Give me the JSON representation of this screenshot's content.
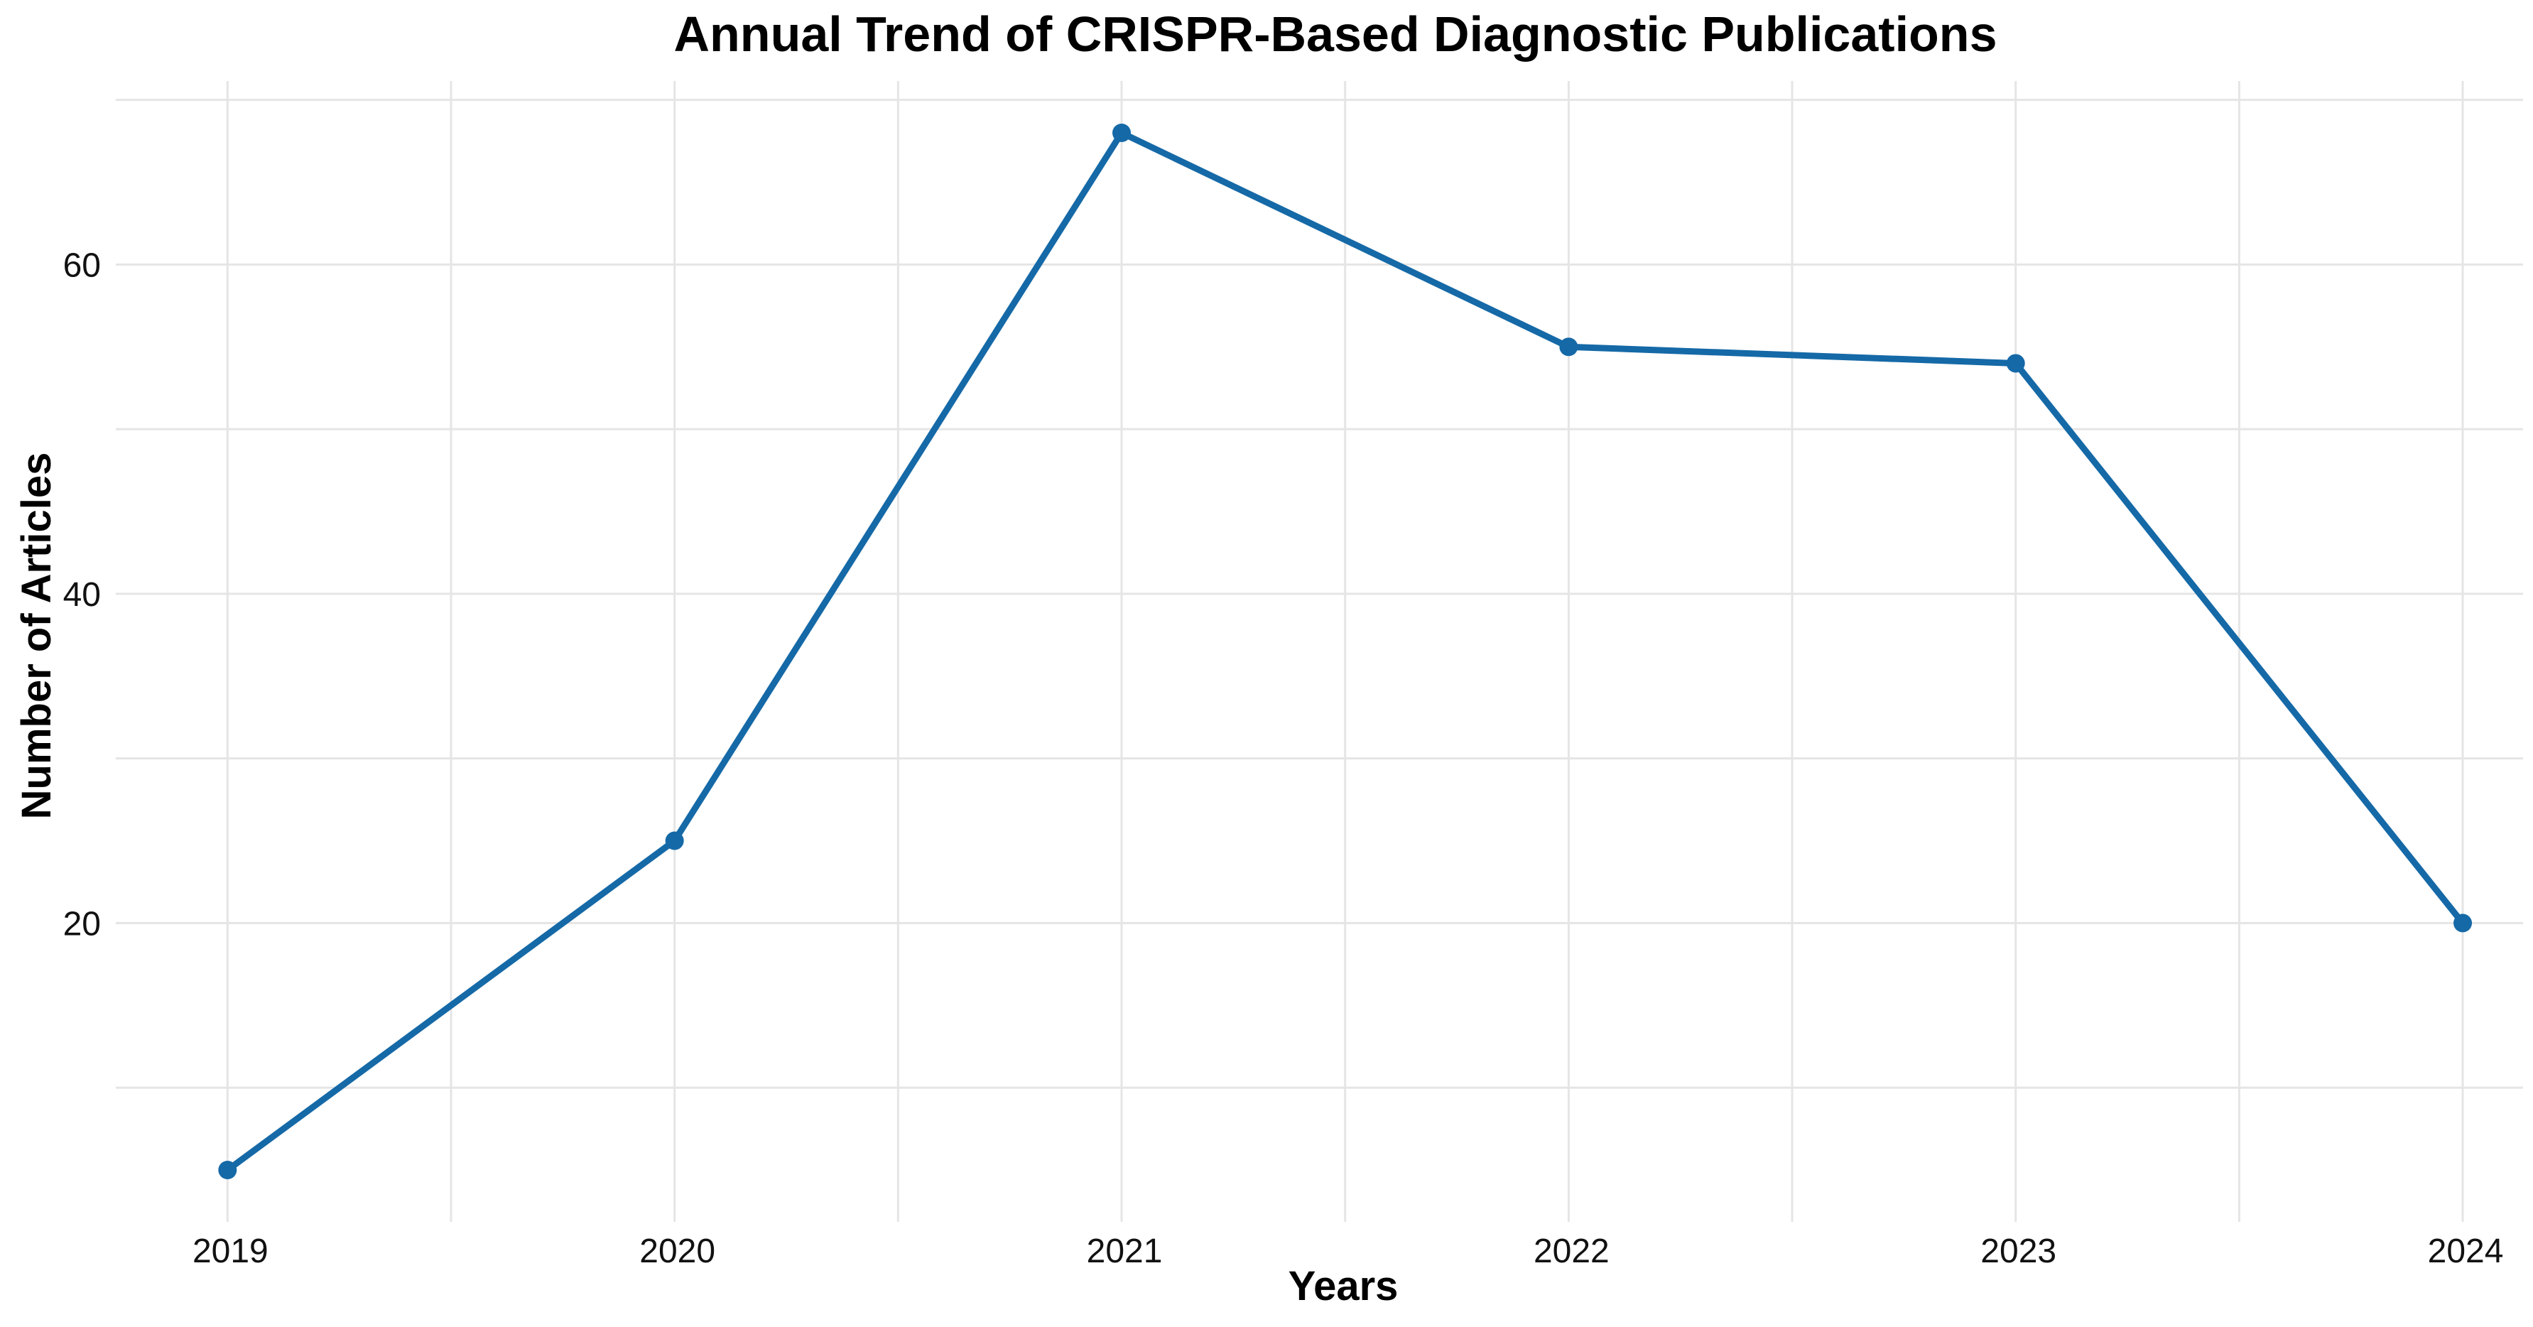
{
  "figure": {
    "background": "#ffffff"
  },
  "chart_data": {
    "type": "line",
    "title": "Annual Trend of CRISPR-Based Diagnostic Publications",
    "xlabel": "Years",
    "ylabel": "Number of Articles",
    "categories": [
      2019,
      2020,
      2021,
      2022,
      2023,
      2024
    ],
    "values": [
      5,
      25,
      68,
      55,
      54,
      20
    ],
    "x_tick_labels": [
      "2019",
      "2020",
      "2021",
      "2022",
      "2023",
      "2024"
    ],
    "y_tick_labels": [
      "20",
      "40",
      "60"
    ],
    "yticks": [
      20,
      40,
      60
    ],
    "yticks_minor": [
      10,
      30,
      50,
      70
    ],
    "ylim": [
      1.85,
      71.15
    ],
    "xlim": [
      2018.75,
      2024.135
    ],
    "grid": true,
    "legend": "none",
    "line_color": "#1569a7",
    "marker_color": "#1569a7",
    "grid_color": "#e5e5e5",
    "text_color": "#111111",
    "marker": "circle"
  }
}
